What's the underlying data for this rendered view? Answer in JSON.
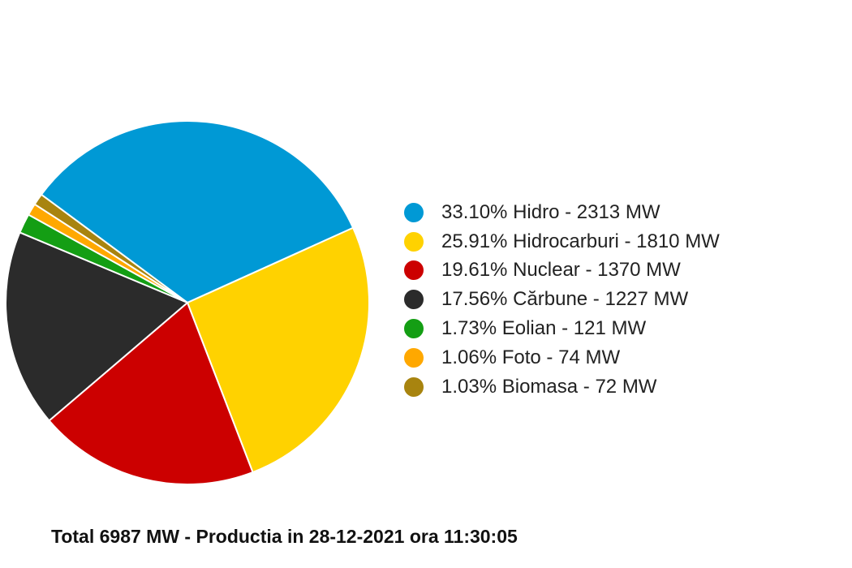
{
  "chart_data": {
    "type": "pie",
    "unit": "MW",
    "total": 6987,
    "slices": [
      {
        "label": "Hidro",
        "percent": "33.10%",
        "value": 2313,
        "color": "#0099d5"
      },
      {
        "label": "Hidrocarburi",
        "percent": "25.91%",
        "value": 1810,
        "color": "#ffd200"
      },
      {
        "label": "Nuclear",
        "percent": "19.61%",
        "value": 1370,
        "color": "#cc0000"
      },
      {
        "label": "Cărbune",
        "percent": "17.56%",
        "value": 1227,
        "color": "#2b2b2b"
      },
      {
        "label": "Eolian",
        "percent": "1.73%",
        "value": 121,
        "color": "#149e14"
      },
      {
        "label": "Foto",
        "percent": "1.06%",
        "value": 74,
        "color": "#ffa800"
      },
      {
        "label": "Biomasa",
        "percent": "1.03%",
        "value": 72,
        "color": "#a8840f"
      }
    ],
    "legend_placement": "right",
    "caption": "Total 6987 MW - Productia in 28-12-2021 ora 11:30:05"
  }
}
